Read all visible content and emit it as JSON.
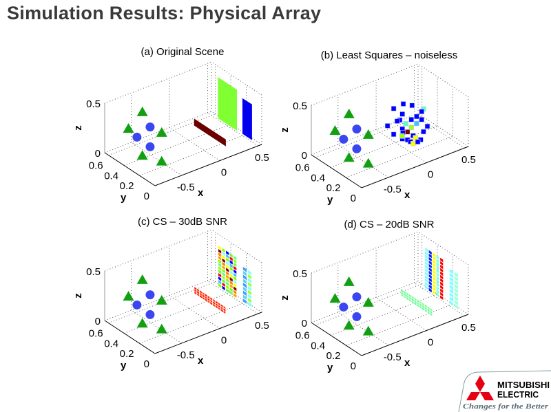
{
  "slide": {
    "title": "Simulation Results: Physical Array"
  },
  "logo": {
    "line1": "MITSUBISHI",
    "line2": "ELECTRIC",
    "tagline": "Changes for the Better",
    "brand_color": "#e60012",
    "tagline_color": "#5a6e7a"
  },
  "palette": {
    "triangle": "#12a012",
    "circle": "#3b46f0",
    "axis": "#000000",
    "grid": "#555555"
  },
  "chart_data": [
    {
      "id": "a",
      "type": "scatter",
      "projection": "3d",
      "title": "(a) Original Scene",
      "xlabel": "x",
      "ylabel": "y",
      "zlabel": "z",
      "xticks": [
        "-0.5",
        "0",
        "0.5"
      ],
      "yticks": [
        "0",
        "0.2",
        "0.4",
        "0.6"
      ],
      "zticks": [
        "0",
        "0.5"
      ],
      "xlim": [
        -0.85,
        0.55
      ],
      "ylim": [
        0,
        0.65
      ],
      "zlim": [
        0,
        0.5
      ],
      "grid": true,
      "markers": true,
      "patches": [
        {
          "name": "strip",
          "x": 0.13,
          "y": [
            0.05,
            0.46
          ],
          "z": [
            0.08,
            0.15
          ],
          "cells": [
            1,
            1
          ],
          "colors": [
            "#6b0000"
          ]
        },
        {
          "name": "plate-large",
          "x": 0.3,
          "y": [
            0.074,
            0.32
          ],
          "z": [
            0.175,
            0.59
          ],
          "cells": [
            1,
            1
          ],
          "colors": [
            "#80ff33"
          ]
        },
        {
          "name": "plate-small",
          "x": 0.5,
          "y": [
            0.076,
            0.2
          ],
          "z": [
            0.02,
            0.38
          ],
          "cells": [
            1,
            1
          ],
          "colors": [
            "#0000ee"
          ]
        }
      ],
      "points": []
    },
    {
      "id": "b",
      "type": "scatter",
      "projection": "3d",
      "title": "(b) Least Squares – noiseless",
      "xlabel": "x",
      "ylabel": "y",
      "zlabel": "z",
      "xticks": [
        "-0.5",
        "0",
        "0.5"
      ],
      "yticks": [
        "0",
        "0.2",
        "0.4",
        "0.6"
      ],
      "zticks": [
        "0",
        "0.5"
      ],
      "xlim": [
        -0.85,
        0.55
      ],
      "ylim": [
        0,
        0.65
      ],
      "zlim": [
        0,
        0.5
      ],
      "grid": true,
      "markers": true,
      "patches": [],
      "points": [
        {
          "x": 0.001,
          "y": 0.3,
          "z": 0.44,
          "c": "#0000ff"
        },
        {
          "x": -0.125,
          "y": 0.3,
          "z": 0.43,
          "c": "#0000ff"
        },
        {
          "x": 0.116,
          "y": 0.3,
          "z": 0.39,
          "c": "#0000ff"
        },
        {
          "x": 0.266,
          "y": 0.3,
          "z": 0.31,
          "c": "#60ffc0"
        },
        {
          "x": 0.242,
          "y": 0.3,
          "z": 0.29,
          "c": "#0000ff"
        },
        {
          "x": -0.011,
          "y": 0.3,
          "z": 0.34,
          "c": "#0000ff"
        },
        {
          "x": 0.176,
          "y": 0.3,
          "z": 0.26,
          "c": "#0000ff"
        },
        {
          "x": -0.044,
          "y": 0.3,
          "z": 0.29,
          "c": "#0000ff"
        },
        {
          "x": -0.08,
          "y": 0.3,
          "z": 0.29,
          "c": "#0000ff"
        },
        {
          "x": 0.107,
          "y": 0.3,
          "z": 0.25,
          "c": "#0000ff"
        },
        {
          "x": 0.242,
          "y": 0.3,
          "z": 0.21,
          "c": "#0000ff"
        },
        {
          "x": 0.034,
          "y": 0.3,
          "z": 0.23,
          "c": "#60ffc0"
        },
        {
          "x": 0.176,
          "y": 0.3,
          "z": 0.19,
          "c": "#40c0ff"
        },
        {
          "x": 0.107,
          "y": 0.3,
          "z": 0.17,
          "c": "#a0ff20"
        },
        {
          "x": 0.317,
          "y": 0.3,
          "z": 0.12,
          "c": "#0000ff"
        },
        {
          "x": -0.206,
          "y": 0.3,
          "z": 0.28,
          "c": "#0000ff"
        },
        {
          "x": -0.011,
          "y": 0.3,
          "z": 0.19,
          "c": "#0000ff"
        },
        {
          "x": 0.056,
          "y": 0.3,
          "z": 0.14,
          "c": "#800000"
        },
        {
          "x": 0.266,
          "y": 0.3,
          "z": 0.08,
          "c": "#0000ff"
        },
        {
          "x": -0.125,
          "y": 0.3,
          "z": 0.17,
          "c": "#0000ff"
        },
        {
          "x": -0.005,
          "y": 0.3,
          "z": 0.15,
          "c": "#0000ff"
        },
        {
          "x": 0.131,
          "y": 0.3,
          "z": 0.08,
          "c": "#0000ff"
        },
        {
          "x": -0.011,
          "y": 0.3,
          "z": 0.09,
          "c": "#0000ff"
        },
        {
          "x": 0.161,
          "y": 0.3,
          "z": 0.05,
          "c": "#ffff00"
        },
        {
          "x": -0.014,
          "y": 0.3,
          "z": 0.12,
          "c": "#a0ff20"
        },
        {
          "x": 0.056,
          "y": 0.3,
          "z": 0.06,
          "c": "#0000ff"
        },
        {
          "x": 0.095,
          "y": 0.3,
          "z": 0.03,
          "c": "#0000ff"
        },
        {
          "x": 0.23,
          "y": 0.3,
          "z": 0.01,
          "c": "#0000ff"
        },
        {
          "x": 0.131,
          "y": 0.3,
          "z": 0.0,
          "c": "#ffff00"
        },
        {
          "x": 0.191,
          "y": 0.3,
          "z": 0.0,
          "c": "#0000ff"
        }
      ]
    },
    {
      "id": "c",
      "type": "scatter",
      "projection": "3d",
      "title": "(c) CS – 30dB SNR",
      "xlabel": "x",
      "ylabel": "y",
      "zlabel": "z",
      "xticks": [
        "-0.5",
        "0",
        "0.5"
      ],
      "yticks": [
        "0",
        "0.2",
        "0.4",
        "0.6"
      ],
      "zticks": [
        "0",
        "0.5"
      ],
      "xlim": [
        -0.85,
        0.55
      ],
      "ylim": [
        0,
        0.65
      ],
      "zlim": [
        0,
        0.5
      ],
      "grid": true,
      "markers": true,
      "patches": [
        {
          "name": "strip",
          "x": 0.13,
          "y": [
            0.05,
            0.46
          ],
          "z": [
            0.08,
            0.15
          ],
          "cells": [
            12,
            3
          ],
          "colors": [
            "#ff2000",
            "#ff3000",
            "#ff1000",
            "#ff4010"
          ]
        },
        {
          "name": "plate-large",
          "x": 0.3,
          "y": [
            0.074,
            0.32
          ],
          "z": [
            0.175,
            0.59
          ],
          "cells": [
            5,
            12
          ],
          "colors": [
            "#80ff00",
            "#60ff40",
            "#ffa000",
            "#80ffff",
            "#ff0000",
            "#80ff00",
            "#ffff00",
            "#0000ff",
            "#60ff80",
            "#800000",
            "#40c0ff",
            "#a0ff00",
            "#ff8000"
          ]
        },
        {
          "name": "plate-small",
          "x": 0.5,
          "y": [
            0.076,
            0.2
          ],
          "z": [
            0.02,
            0.38
          ],
          "cells": [
            2,
            9
          ],
          "colors": [
            "#40a0ff",
            "#80ffff",
            "#4060ff",
            "#60d0ff",
            "#a0ff40",
            "#80e0ff"
          ]
        }
      ],
      "points": []
    },
    {
      "id": "d",
      "type": "scatter",
      "projection": "3d",
      "title": "(d) CS – 20dB SNR",
      "xlabel": "x",
      "ylabel": "y",
      "zlabel": "z",
      "xticks": [
        "-0.5",
        "0",
        "0.5"
      ],
      "yticks": [
        "0",
        "0.2",
        "0.4",
        "0.6"
      ],
      "zticks": [
        "0",
        "0.5"
      ],
      "xlim": [
        -0.85,
        0.55
      ],
      "ylim": [
        0,
        0.65
      ],
      "zlim": [
        0,
        0.5
      ],
      "grid": true,
      "markers": true,
      "patches": [
        {
          "name": "strip",
          "x": 0.13,
          "y": [
            0.05,
            0.46
          ],
          "z": [
            0.08,
            0.15
          ],
          "cells": [
            12,
            3
          ],
          "colors": [
            "#70ffa0",
            "#80ff90",
            "#60ff90"
          ]
        },
        {
          "name": "plate-large",
          "x": 0.3,
          "y": [
            0.074,
            0.32
          ],
          "z": [
            0.175,
            0.59
          ],
          "cells": [
            5,
            12
          ],
          "colors": [
            "#80ffff",
            "#0000ff",
            "#ffff00",
            "#40c0ff",
            "#ff0000",
            "#80ffff",
            "#a0ff40",
            "#0020ff",
            "#800000",
            "#80ffe0",
            "#ffa000",
            "#60ff80"
          ]
        },
        {
          "name": "plate-small",
          "x": 0.5,
          "y": [
            0.076,
            0.2
          ],
          "z": [
            0.02,
            0.38
          ],
          "cells": [
            2,
            9
          ],
          "colors": [
            "#80ffff",
            "#60ff90",
            "#a0ffe0",
            "#40e0ff",
            "#80ff80"
          ]
        }
      ],
      "points": []
    }
  ],
  "scene_markers": {
    "x": -0.65,
    "triangles": [
      [
        0.36,
        0.5
      ],
      [
        0.54,
        0.24
      ],
      [
        0.11,
        0.42
      ],
      [
        0.36,
        0.06
      ],
      [
        0.11,
        0.13
      ]
    ],
    "circles": [
      [
        0.26,
        0.4
      ],
      [
        0.43,
        0.21
      ],
      [
        0.26,
        0.2
      ]
    ]
  }
}
